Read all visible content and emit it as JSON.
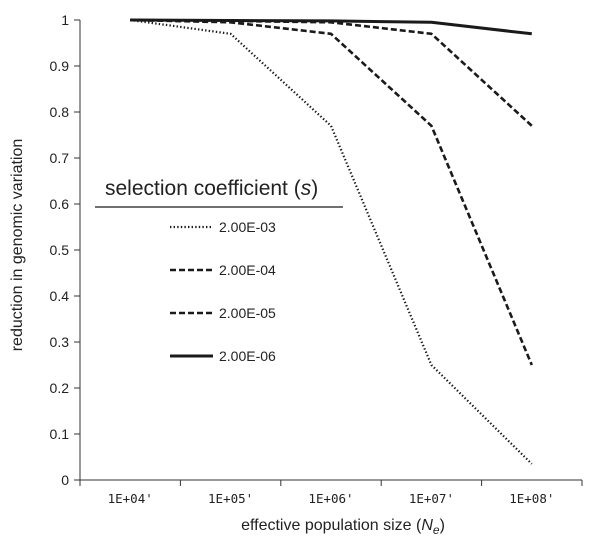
{
  "chart_data": {
    "type": "line",
    "xlabel_main": "effective population size (",
    "xlabel_var": "N",
    "xlabel_sub": "e",
    "xlabel_close": ")",
    "ylabel": "reduction in genomic variation",
    "categories": [
      "1E+04'",
      "1E+05'",
      "1E+06'",
      "1E+07'",
      "1E+08'"
    ],
    "y_ticks": [
      "0",
      "0.1",
      "0.2",
      "0.3",
      "0.4",
      "0.5",
      "0.6",
      "0.7",
      "0.8",
      "0.9",
      "1"
    ],
    "ylim": [
      0,
      1
    ],
    "grid": false,
    "legend": {
      "title_main": "selection coefficient (",
      "title_var": "s",
      "title_close": ")",
      "placement": "center-left"
    },
    "series": [
      {
        "name": "2.00E-03",
        "style": "dotted",
        "values": [
          1.0,
          0.97,
          0.77,
          0.25,
          0.035
        ]
      },
      {
        "name": "2.00E-04",
        "style": "dashed",
        "values": [
          1.0,
          0.995,
          0.97,
          0.77,
          0.25
        ]
      },
      {
        "name": "2.00E-05",
        "style": "dashed",
        "values": [
          1.0,
          0.998,
          0.995,
          0.97,
          0.77
        ]
      },
      {
        "name": "2.00E-06",
        "style": "solid",
        "values": [
          1.0,
          0.999,
          0.998,
          0.995,
          0.97
        ]
      }
    ],
    "colors": {
      "line": "#1a1a1a",
      "axis": "#333333"
    }
  }
}
